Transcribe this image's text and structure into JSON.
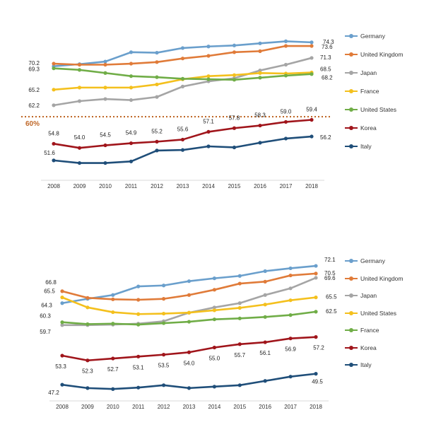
{
  "chart_data": [
    {
      "type": "line",
      "x": [
        "2008",
        "2009",
        "2010",
        "2011",
        "2012",
        "2013",
        "2014",
        "2015",
        "2016",
        "2017",
        "2018"
      ],
      "ylim": [
        49,
        77
      ],
      "reference_line": {
        "value": 60,
        "label": "60%",
        "color": "#c0692a",
        "style": "dotted"
      },
      "legend_position": "right",
      "series": [
        {
          "name": "Germany",
          "color": "#6a9fcc",
          "values": [
            69.7,
            70.1,
            70.6,
            72.4,
            72.3,
            73.2,
            73.5,
            73.7,
            74.1,
            74.5,
            74.3
          ],
          "labels": {
            "10": "74.3"
          }
        },
        {
          "name": "United Kingdom",
          "color": "#e07b39",
          "values": [
            70.2,
            70.0,
            70.0,
            70.2,
            70.5,
            71.2,
            71.7,
            72.4,
            72.6,
            73.6,
            73.6
          ],
          "labels": {
            "0": "70.2",
            "10": "73.6"
          }
        },
        {
          "name": "Japan",
          "color": "#a5a5a5",
          "values": [
            62.2,
            63.0,
            63.4,
            63.2,
            63.8,
            65.8,
            66.8,
            67.4,
            68.9,
            70.0,
            71.3
          ],
          "labels": {
            "0": "62.2",
            "10": "71.3"
          }
        },
        {
          "name": "France",
          "color": "#f4c01d",
          "values": [
            65.2,
            65.6,
            65.6,
            65.6,
            66.2,
            67.2,
            67.8,
            68.0,
            68.4,
            68.3,
            68.5
          ],
          "labels": {
            "0": "65.2",
            "10": "68.5"
          }
        },
        {
          "name": "United States",
          "color": "#70ad47",
          "values": [
            69.3,
            69.0,
            68.4,
            67.8,
            67.6,
            67.3,
            67.2,
            67.1,
            67.5,
            67.9,
            68.2
          ],
          "labels": {
            "0": "69.3",
            "10": "68.2"
          }
        },
        {
          "name": "Korea",
          "color": "#a0151b",
          "values": [
            54.8,
            54.0,
            54.5,
            54.9,
            55.2,
            55.6,
            57.1,
            57.8,
            58.3,
            59.0,
            59.4
          ],
          "labels": {
            "0": "54.8",
            "1": "54.0",
            "2": "54.5",
            "3": "54.9",
            "4": "55.2",
            "5": "55.6",
            "6": "57.1",
            "7": "57.8",
            "8": "58.3",
            "9": "59.0",
            "10": "59.4"
          }
        },
        {
          "name": "Italy",
          "color": "#1f4e79",
          "values": [
            51.6,
            51.1,
            51.1,
            51.4,
            53.5,
            53.6,
            54.3,
            54.1,
            55.0,
            55.8,
            56.2
          ],
          "labels": {
            "0": "51.6",
            "10": "56.2"
          }
        }
      ]
    },
    {
      "type": "line",
      "x": [
        "2008",
        "2009",
        "2010",
        "2011",
        "2012",
        "2013",
        "2014",
        "2015",
        "2016",
        "2017",
        "2018"
      ],
      "ylim": [
        45,
        73
      ],
      "legend_position": "right",
      "series": [
        {
          "name": "Germany",
          "color": "#6a9fcc",
          "values": [
            64.3,
            65.2,
            66.0,
            67.8,
            68.0,
            68.9,
            69.5,
            70.0,
            71.0,
            71.6,
            72.1
          ],
          "labels": {
            "0": "64.3",
            "10": "72.1"
          }
        },
        {
          "name": "United Kingdom",
          "color": "#e07b39",
          "values": [
            66.8,
            65.4,
            65.1,
            65.0,
            65.2,
            66.0,
            67.1,
            68.4,
            68.8,
            70.1,
            70.5
          ],
          "labels": {
            "0": "66.8",
            "10": "70.5"
          }
        },
        {
          "name": "Japan",
          "color": "#a5a5a5",
          "values": [
            59.7,
            59.7,
            59.8,
            60.0,
            60.5,
            62.3,
            63.4,
            64.3,
            66.0,
            67.4,
            69.6
          ],
          "labels": {
            "0": "59.7",
            "10": "69.6"
          }
        },
        {
          "name": "United States",
          "color": "#f4c01d",
          "values": [
            65.5,
            63.4,
            62.4,
            62.0,
            62.1,
            62.3,
            62.8,
            63.3,
            64.0,
            64.9,
            65.5
          ],
          "labels": {
            "0": "65.5",
            "10": "65.5"
          }
        },
        {
          "name": "France",
          "color": "#70ad47",
          "values": [
            60.3,
            59.9,
            60.0,
            59.8,
            60.1,
            60.4,
            60.9,
            61.1,
            61.4,
            61.8,
            62.5
          ],
          "labels": {
            "0": "60.3",
            "10": "62.5"
          }
        },
        {
          "name": "Korea",
          "color": "#a0151b",
          "values": [
            53.3,
            52.3,
            52.7,
            53.1,
            53.5,
            54.0,
            55.0,
            55.7,
            56.1,
            56.9,
            57.2
          ],
          "labels": {
            "0": "53.3",
            "1": "52.3",
            "2": "52.7",
            "3": "53.1",
            "4": "53.5",
            "5": "54.0",
            "6": "55.0",
            "7": "55.7",
            "8": "56.1",
            "9": "56.9",
            "10": "57.2"
          }
        },
        {
          "name": "Italy",
          "color": "#1f4e79",
          "values": [
            47.2,
            46.5,
            46.3,
            46.6,
            47.1,
            46.5,
            46.8,
            47.1,
            48.0,
            48.9,
            49.5
          ],
          "labels": {
            "0": "47.2",
            "10": "49.5"
          }
        }
      ]
    }
  ]
}
